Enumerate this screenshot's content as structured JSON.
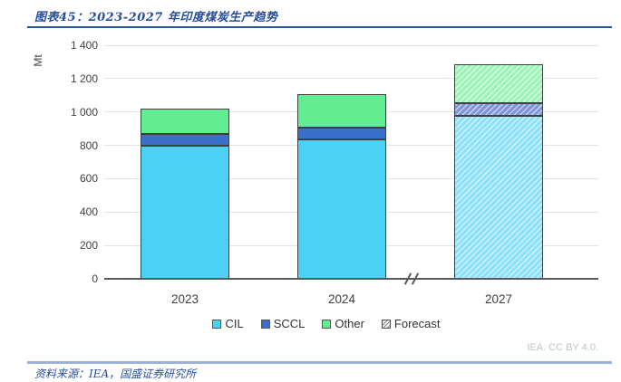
{
  "header": {
    "title": "图表45：2023-2027 年印度煤炭生产趋势"
  },
  "chart_data": {
    "type": "bar",
    "stacked": true,
    "unit_label": "Mt",
    "categories": [
      "2023",
      "2024",
      "2027"
    ],
    "series": [
      {
        "name": "CIL",
        "color": "#4AD1F5",
        "forecast_color": "#8CE0F9",
        "values": [
          795,
          835,
          975
        ]
      },
      {
        "name": "SCCL",
        "color": "#3A70C9",
        "forecast_color": "#7D94D9",
        "values": [
          75,
          70,
          80
        ]
      },
      {
        "name": "Other",
        "color": "#63ED92",
        "forecast_color": "#9DF2B8",
        "values": [
          150,
          200,
          230
        ]
      }
    ],
    "totals": [
      1020,
      1105,
      1285
    ],
    "forecast_categories": [
      "2027"
    ],
    "legend_items": [
      "CIL",
      "SCCL",
      "Other",
      "Forecast"
    ],
    "ylim": [
      0,
      1400
    ],
    "ytick_step": 200,
    "ytick_labels": [
      "0",
      "200",
      "400",
      "600",
      "800",
      "1 000",
      "1 200",
      "1 400"
    ],
    "grid": "horizontal",
    "axis_break_between": [
      "2024",
      "2027"
    ],
    "legend_position": "bottom-center",
    "attribution": "IEA. CC BY 4.0."
  },
  "footer": {
    "source": "资料来源：IEA，国盛证券研究所"
  }
}
